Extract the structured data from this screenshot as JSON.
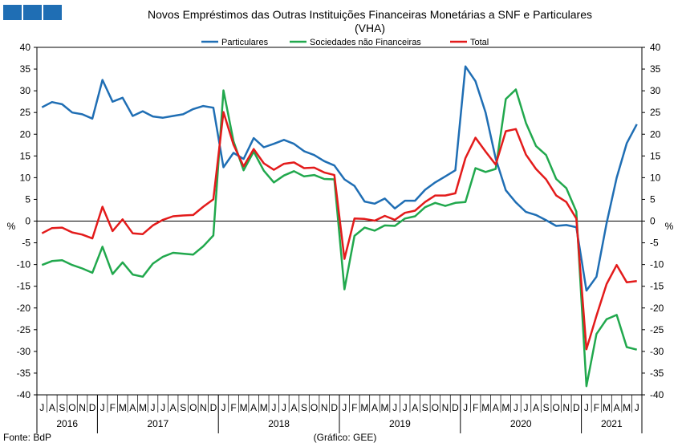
{
  "chart_data": {
    "type": "line",
    "title": "Novos Empréstimos das Outras Instituições Financeiras Monetárias a SNF e Particulares",
    "subtitle": "(VHA)",
    "ylabel_left": "%",
    "ylabel_right": "%",
    "ylim": [
      -40,
      40
    ],
    "y_ticks": [
      40,
      35,
      30,
      25,
      20,
      15,
      10,
      5,
      0,
      -5,
      -10,
      -15,
      -20,
      -25,
      -30,
      -35,
      -40
    ],
    "x_months": [
      "J",
      "A",
      "S",
      "O",
      "N",
      "D",
      "J",
      "F",
      "M",
      "A",
      "M",
      "J",
      "J",
      "A",
      "S",
      "O",
      "N",
      "D",
      "J",
      "F",
      "M",
      "A",
      "M",
      "J",
      "J",
      "A",
      "S",
      "O",
      "N",
      "D",
      "J",
      "F",
      "M",
      "A",
      "M",
      "J",
      "J",
      "A",
      "S",
      "O",
      "N",
      "D",
      "J",
      "F",
      "M",
      "A",
      "M",
      "J",
      "J",
      "A",
      "S",
      "O",
      "N",
      "D",
      "J",
      "F",
      "M",
      "A",
      "M",
      "J"
    ],
    "years": [
      "2016",
      "2017",
      "2018",
      "2019",
      "2020",
      "2021"
    ],
    "legend": [
      "Particulares",
      "Sociedades não Financeiras",
      "Total"
    ],
    "series": [
      {
        "name": "Particulares",
        "color": "#1f6eb4",
        "values": [
          26.2,
          27.4,
          26.9,
          25.0,
          24.6,
          23.6,
          32.5,
          27.5,
          28.4,
          24.2,
          25.3,
          24.1,
          23.8,
          24.2,
          24.6,
          25.8,
          26.5,
          26.1,
          12.4,
          15.7,
          14.3,
          19.1,
          17.0,
          17.8,
          18.7,
          17.8,
          16.1,
          15.2,
          13.8,
          12.8,
          9.6,
          8.1,
          4.5,
          4.0,
          5.2,
          2.9,
          4.7,
          4.7,
          7.2,
          8.9,
          10.3,
          11.7,
          35.6,
          32.2,
          25.0,
          14.4,
          7.1,
          4.3,
          2.1,
          1.4,
          0.2,
          -1.1,
          -0.9,
          -1.4,
          -16.0,
          -12.8,
          -0.5,
          10.0,
          17.9,
          22.3
        ]
      },
      {
        "name": "Sociedades não Financeiras",
        "color": "#21a84d",
        "values": [
          -10.1,
          -9.2,
          -9.0,
          -10.1,
          -10.9,
          -11.9,
          -5.9,
          -12.2,
          -9.5,
          -12.3,
          -12.8,
          -9.8,
          -8.2,
          -7.3,
          -7.5,
          -7.7,
          -5.8,
          -3.3,
          30.1,
          18.4,
          11.7,
          16.0,
          11.6,
          8.9,
          10.5,
          11.5,
          10.3,
          10.6,
          9.7,
          9.6,
          -15.7,
          -3.4,
          -1.5,
          -2.2,
          -1.0,
          -1.1,
          0.6,
          1.1,
          3.2,
          4.2,
          3.5,
          4.2,
          4.4,
          12.2,
          11.3,
          12.0,
          28.1,
          30.3,
          22.6,
          17.3,
          15.2,
          9.7,
          7.6,
          2.2,
          -38.0,
          -26.0,
          -22.6,
          -21.6,
          -29.0,
          -29.6
        ]
      },
      {
        "name": "Total",
        "color": "#e31b1b",
        "values": [
          -2.8,
          -1.6,
          -1.5,
          -2.6,
          -3.1,
          -4.0,
          3.3,
          -2.3,
          0.4,
          -2.8,
          -3.0,
          -1.0,
          0.3,
          1.1,
          1.3,
          1.4,
          3.3,
          5.0,
          25.1,
          17.6,
          12.6,
          16.6,
          13.3,
          11.8,
          13.2,
          13.5,
          12.2,
          12.3,
          11.2,
          10.6,
          -8.7,
          0.6,
          0.5,
          0.1,
          1.2,
          0.3,
          1.9,
          2.4,
          4.4,
          5.9,
          5.9,
          6.4,
          14.5,
          19.2,
          16.0,
          13.0,
          20.7,
          21.2,
          15.3,
          12.0,
          9.6,
          5.9,
          4.4,
          0.6,
          -29.5,
          -21.8,
          -14.5,
          -10.1,
          -14.1,
          -13.8
        ]
      }
    ],
    "footer_left": "Fonte: BdP",
    "footer_center": "(Gráfico: GEE)"
  },
  "ui": {
    "logo_colors": [
      "#1f6eb4",
      "#1f6eb4",
      "#1f6eb4"
    ]
  }
}
